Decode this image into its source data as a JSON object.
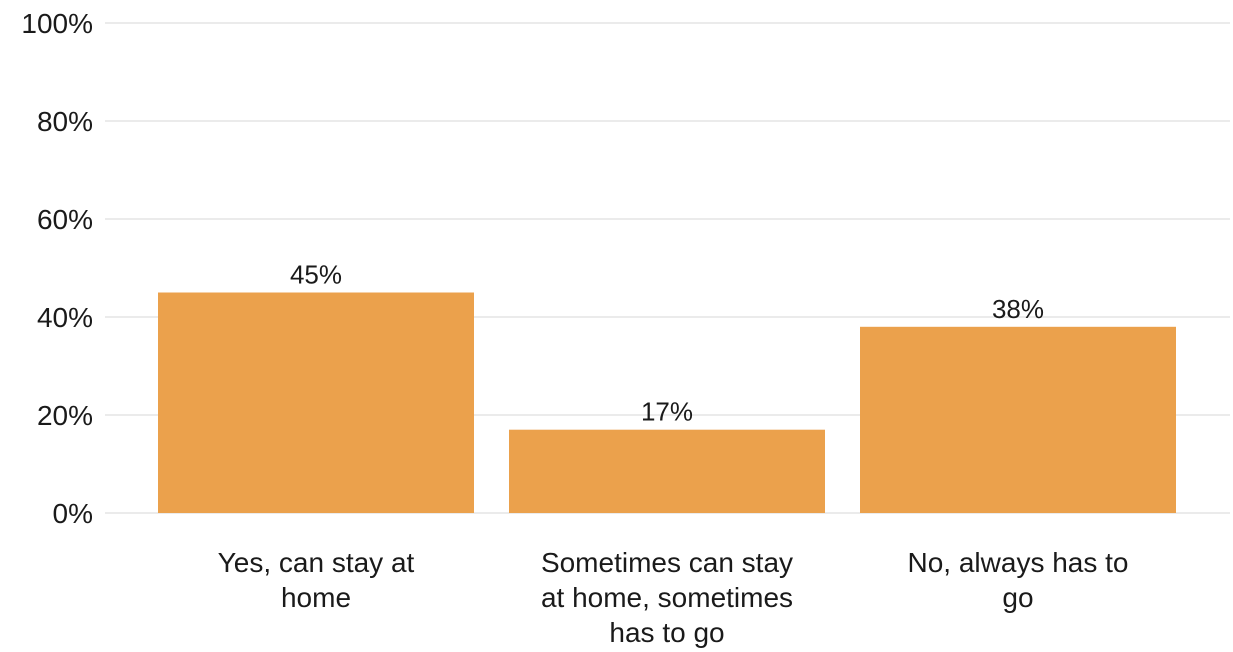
{
  "chart_data": {
    "type": "bar",
    "title": "",
    "xlabel": "",
    "ylabel": "",
    "categories": [
      [
        "Yes, can stay at",
        "home"
      ],
      [
        "Sometimes can stay",
        "at home, sometimes",
        "has to go"
      ],
      [
        "No, always has to",
        "go"
      ]
    ],
    "values": [
      45,
      17,
      38
    ],
    "data_labels": [
      "45%",
      "17%",
      "38%"
    ],
    "ylim": [
      0,
      100
    ],
    "yticks": [
      0,
      20,
      40,
      60,
      80,
      100
    ],
    "ytick_labels": [
      "0%",
      "20%",
      "40%",
      "60%",
      "80%",
      "100%"
    ],
    "grid": true,
    "bar_color": "#eba14c"
  }
}
